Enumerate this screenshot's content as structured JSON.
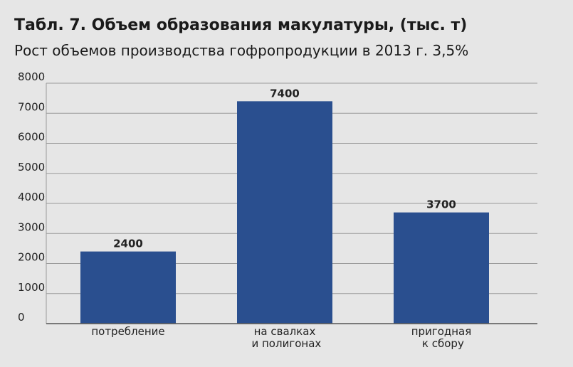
{
  "chart_data": {
    "type": "bar",
    "title": "Табл. 7. Объем образования макулатуры, (тыс. т)",
    "subtitle": "Рост объемов производства гофропродукции в 2013 г. 3,5%",
    "categories": [
      "потребление",
      "на свалках\nи полигонах",
      "пригодная\nк сбору"
    ],
    "values": [
      2400,
      7400,
      3700
    ],
    "color": "#2a4f8f",
    "ylim": [
      0,
      8000
    ],
    "yticks": [
      0,
      1000,
      2000,
      3000,
      4000,
      5000,
      6000,
      7000,
      8000
    ],
    "grid": true,
    "data_labels": true
  }
}
